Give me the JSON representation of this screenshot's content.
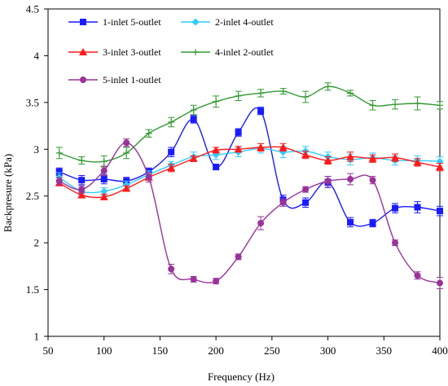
{
  "chart_data": {
    "type": "line",
    "title": "",
    "xlabel": "Frequency (Hz)",
    "ylabel": "Backpresure (kPa)",
    "xlim": [
      50,
      400
    ],
    "ylim": [
      1,
      4.5
    ],
    "xticks": [
      50,
      100,
      150,
      200,
      250,
      300,
      350,
      400
    ],
    "yticks": [
      1,
      1.5,
      2,
      2.5,
      3,
      3.5,
      4,
      4.5
    ],
    "ytick_labels": [
      "1",
      "1.5",
      "2",
      "2.5",
      "3",
      "3.5",
      "4",
      "4.5"
    ],
    "grid": false,
    "legend_position": "top-left",
    "x": [
      60,
      80,
      100,
      120,
      140,
      160,
      180,
      200,
      220,
      240,
      260,
      280,
      300,
      320,
      340,
      360,
      380,
      400
    ],
    "series": [
      {
        "name": "1-inlet 5-outlet",
        "color": "#1a1aff",
        "marker": "square",
        "values": [
          2.76,
          2.67,
          2.68,
          2.66,
          2.76,
          2.97,
          3.32,
          2.81,
          3.18,
          3.41,
          2.46,
          2.43,
          2.65,
          2.22,
          2.21,
          2.37,
          2.38,
          2.34
        ],
        "errors": [
          0.04,
          0.05,
          0.05,
          0.04,
          0.04,
          0.05,
          0.04,
          0.03,
          0.04,
          0.04,
          0.05,
          0.05,
          0.06,
          0.05,
          0.04,
          0.05,
          0.06,
          0.05
        ]
      },
      {
        "name": "2-inlet 4-outlet",
        "color": "#33ccff",
        "marker": "diamond",
        "values": [
          2.7,
          2.55,
          2.55,
          2.62,
          2.73,
          2.83,
          2.92,
          2.94,
          2.97,
          3.01,
          2.97,
          2.98,
          2.92,
          2.89,
          2.91,
          2.88,
          2.88,
          2.87
        ],
        "errors": [
          0.05,
          0.04,
          0.04,
          0.04,
          0.04,
          0.04,
          0.05,
          0.05,
          0.05,
          0.05,
          0.06,
          0.05,
          0.05,
          0.06,
          0.05,
          0.05,
          0.05,
          0.05
        ]
      },
      {
        "name": "3-inlet 3-outlet",
        "color": "#ff1a1a",
        "marker": "triangle",
        "values": [
          2.64,
          2.51,
          2.49,
          2.58,
          2.7,
          2.8,
          2.9,
          2.99,
          3.0,
          3.02,
          3.02,
          2.94,
          2.88,
          2.92,
          2.9,
          2.91,
          2.86,
          2.81
        ],
        "errors": [
          0.03,
          0.03,
          0.03,
          0.03,
          0.03,
          0.04,
          0.03,
          0.03,
          0.03,
          0.04,
          0.04,
          0.04,
          0.04,
          0.05,
          0.04,
          0.04,
          0.04,
          0.04
        ]
      },
      {
        "name": "4-inlet 2-outlet",
        "color": "#339933",
        "marker": "plus",
        "values": [
          2.96,
          2.88,
          2.87,
          2.96,
          3.17,
          3.29,
          3.42,
          3.51,
          3.57,
          3.6,
          3.62,
          3.56,
          3.67,
          3.6,
          3.47,
          3.48,
          3.49,
          3.47
        ],
        "errors": [
          0.06,
          0.04,
          0.06,
          0.06,
          0.04,
          0.05,
          0.05,
          0.06,
          0.05,
          0.04,
          0.03,
          0.06,
          0.04,
          0.03,
          0.05,
          0.05,
          0.07,
          0.04
        ]
      },
      {
        "name": "5-inlet 1-outlet",
        "color": "#993399",
        "marker": "circle",
        "values": [
          2.66,
          2.57,
          2.77,
          3.07,
          2.7,
          1.72,
          1.61,
          1.59,
          1.85,
          2.21,
          2.43,
          2.57,
          2.66,
          2.68,
          2.67,
          2.0,
          1.65,
          1.57
        ],
        "errors": [
          0.04,
          0.04,
          0.05,
          0.04,
          0.05,
          0.05,
          0.03,
          0.03,
          0.03,
          0.07,
          0.04,
          0.03,
          0.05,
          0.06,
          0.04,
          0.03,
          0.04,
          0.06
        ]
      }
    ]
  }
}
